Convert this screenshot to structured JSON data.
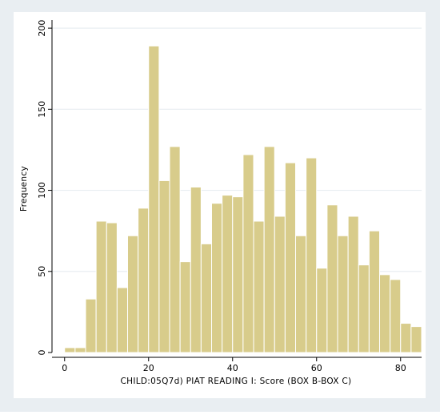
{
  "chart_data": {
    "type": "bar",
    "subtype": "histogram",
    "xlabel": "CHILD:05Q7d) PIAT READING I: Score (BOX B-BOX C)",
    "ylabel": "Frequency",
    "xlim": [
      -3,
      85
    ],
    "ylim": [
      0,
      205
    ],
    "x_ticks": [
      0,
      20,
      40,
      60,
      80
    ],
    "y_ticks": [
      0,
      50,
      100,
      150,
      200
    ],
    "bin_width": 2.5,
    "bins": [
      {
        "x0": 0.0,
        "value": 3
      },
      {
        "x0": 2.5,
        "value": 3
      },
      {
        "x0": 5.0,
        "value": 33
      },
      {
        "x0": 7.5,
        "value": 81
      },
      {
        "x0": 10.0,
        "value": 80
      },
      {
        "x0": 12.5,
        "value": 40
      },
      {
        "x0": 15.0,
        "value": 72
      },
      {
        "x0": 17.5,
        "value": 89
      },
      {
        "x0": 20.0,
        "value": 189
      },
      {
        "x0": 22.5,
        "value": 106
      },
      {
        "x0": 25.0,
        "value": 127
      },
      {
        "x0": 27.5,
        "value": 56
      },
      {
        "x0": 30.0,
        "value": 102
      },
      {
        "x0": 32.5,
        "value": 67
      },
      {
        "x0": 35.0,
        "value": 92
      },
      {
        "x0": 37.5,
        "value": 97
      },
      {
        "x0": 40.0,
        "value": 96
      },
      {
        "x0": 42.5,
        "value": 122
      },
      {
        "x0": 45.0,
        "value": 81
      },
      {
        "x0": 47.5,
        "value": 127
      },
      {
        "x0": 50.0,
        "value": 84
      },
      {
        "x0": 52.5,
        "value": 117
      },
      {
        "x0": 55.0,
        "value": 72
      },
      {
        "x0": 57.5,
        "value": 120
      },
      {
        "x0": 60.0,
        "value": 52
      },
      {
        "x0": 62.5,
        "value": 91
      },
      {
        "x0": 65.0,
        "value": 72
      },
      {
        "x0": 67.5,
        "value": 84
      },
      {
        "x0": 70.0,
        "value": 54
      },
      {
        "x0": 72.5,
        "value": 75
      },
      {
        "x0": 75.0,
        "value": 48
      },
      {
        "x0": 77.5,
        "value": 45
      },
      {
        "x0": 80.0,
        "value": 18
      },
      {
        "x0": 82.5,
        "value": 16
      }
    ],
    "grid": "horizontal",
    "legend": "none"
  },
  "colors": {
    "outer_background": "#e9eef2",
    "plot_background": "#ffffff",
    "bar_fill": "#d8cc8b",
    "bar_stroke": "#ffffff",
    "grid": "#e9eef2",
    "axis": "#000000"
  }
}
